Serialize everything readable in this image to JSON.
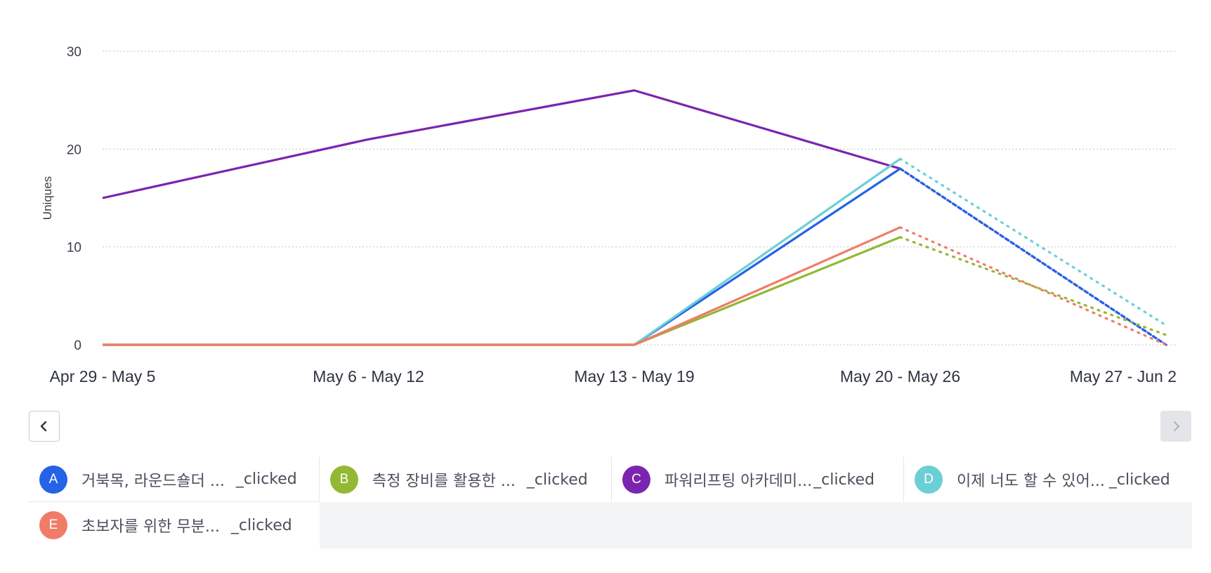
{
  "chart_data": {
    "type": "line",
    "ylabel": "Uniques",
    "ylim": [
      0,
      30
    ],
    "yticks": [
      0,
      10,
      20,
      30
    ],
    "grid": true,
    "categories": [
      "Apr 29 - May 5",
      "May 6 - May 12",
      "May 13 - May 19",
      "May 20 - May 26",
      "May 27 - Jun 2"
    ],
    "incomplete_last_period": true,
    "series": [
      {
        "letter": "A",
        "name": "거북목, 라운드숄더 ...",
        "suffix": "_clicked",
        "color": "#2563e6",
        "dash": "5,4",
        "values": [
          0,
          0,
          0,
          18,
          0
        ]
      },
      {
        "letter": "B",
        "name": "측정 장비를 활용한 ...",
        "suffix": "_clicked",
        "color": "#93b833",
        "dash": "2,8",
        "values": [
          0,
          0,
          0,
          11,
          1
        ]
      },
      {
        "letter": "C",
        "name": "파워리프팅 아카데미...",
        "suffix": "_clicked",
        "color": "#7b24b0",
        "dash": "5,4",
        "values": [
          15,
          21,
          26,
          18,
          0
        ]
      },
      {
        "letter": "D",
        "name": "이제 너도 할 수 있어...",
        "suffix": "_clicked",
        "color": "#6ccfd6",
        "dash": "2,8",
        "values": [
          0,
          0,
          0,
          19,
          2
        ]
      },
      {
        "letter": "E",
        "name": "초보자를 위한 무분...",
        "suffix": "_clicked",
        "color": "#f07c68",
        "dash": "2,8",
        "values": [
          0,
          0,
          0,
          12,
          0
        ]
      }
    ]
  },
  "colors": {
    "grid": "#bfc3c9",
    "badge_text": "#ffffff"
  },
  "nav": {
    "prev_icon": "chevron-left-icon",
    "next_icon": "chevron-right-icon"
  }
}
